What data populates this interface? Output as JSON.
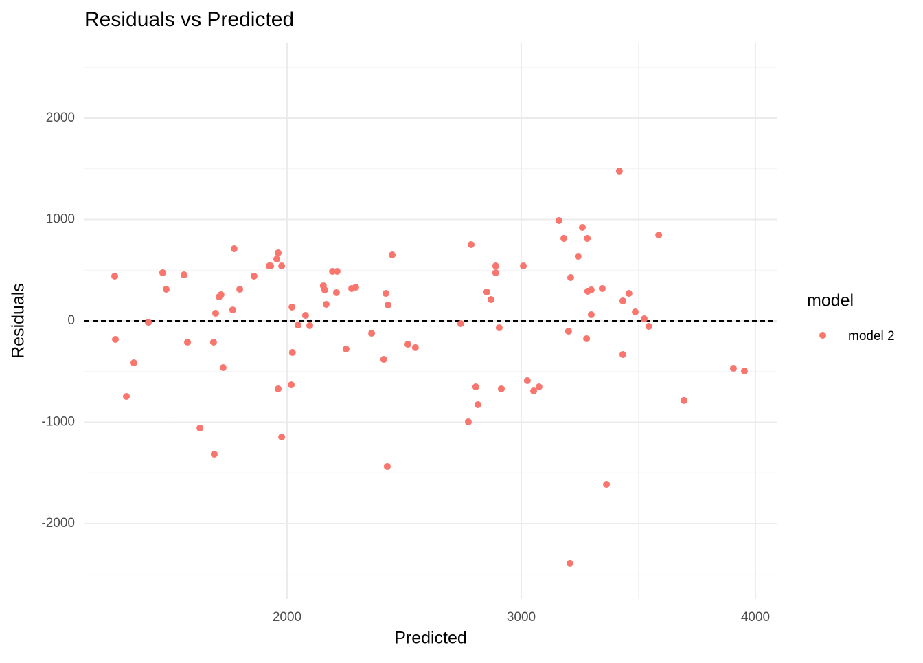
{
  "chart_data": {
    "type": "scatter",
    "title": "Residuals vs Predicted",
    "x_label": "Predicted",
    "y_label": "Residuals",
    "xlim": [
      1135,
      4091
    ],
    "ylim": [
      -2746,
      2746
    ],
    "xticks": [
      2000,
      3000,
      4000
    ],
    "yticks": [
      -2000,
      -1000,
      0,
      1000,
      2000
    ],
    "x_minor_grid": [
      1500,
      2500,
      3500
    ],
    "y_minor_grid": [
      -2500,
      -1500,
      -500,
      500,
      1500,
      2500
    ],
    "grid": true,
    "hline": 0,
    "legend_title": "model",
    "legend_position": "right",
    "x": [
      1264,
      1267,
      1314,
      1346,
      1408,
      1469,
      1484,
      1560,
      1575,
      1628,
      1686,
      1689,
      1695,
      1710,
      1718,
      1727,
      1768,
      1774,
      1798,
      1859,
      1924,
      1930,
      1956,
      1962,
      1962,
      1977,
      1977,
      2018,
      2021,
      2023,
      2047,
      2079,
      2097,
      2155,
      2161,
      2167,
      2194,
      2211,
      2214,
      2252,
      2276,
      2293,
      2361,
      2413,
      2422,
      2428,
      2431,
      2449,
      2516,
      2548,
      2742,
      2774,
      2786,
      2806,
      2815,
      2853,
      2871,
      2891,
      2891,
      2906,
      2915,
      3009,
      3026,
      3053,
      3076,
      3161,
      3182,
      3202,
      3208,
      3211,
      3243,
      3261,
      3279,
      3282,
      3284,
      3299,
      3299,
      3346,
      3364,
      3419,
      3434,
      3434,
      3460,
      3487,
      3525,
      3545,
      3587,
      3695,
      3906,
      3953
    ],
    "series": [
      {
        "name": "model 2",
        "color": "#F8766D",
        "values": [
          441,
          -183,
          -746,
          -414,
          -14,
          475,
          312,
          454,
          -210,
          -1058,
          -210,
          -1315,
          75,
          237,
          258,
          -461,
          108,
          712,
          312,
          441,
          542,
          542,
          610,
          671,
          -671,
          542,
          -1146,
          -631,
          136,
          -312,
          -41,
          54,
          -47,
          346,
          305,
          163,
          488,
          278,
          488,
          -278,
          319,
          332,
          -122,
          -380,
          271,
          -1437,
          156,
          651,
          -231,
          -264,
          -27,
          -997,
          753,
          -651,
          -827,
          285,
          210,
          542,
          475,
          -68,
          -671,
          542,
          -590,
          -692,
          -651,
          990,
          814,
          -102,
          -2393,
          427,
          637,
          922,
          -176,
          814,
          292,
          305,
          61,
          319,
          -1614,
          1478,
          197,
          -332,
          271,
          88,
          20,
          -54,
          847,
          -786,
          -468,
          -495
        ]
      }
    ]
  }
}
